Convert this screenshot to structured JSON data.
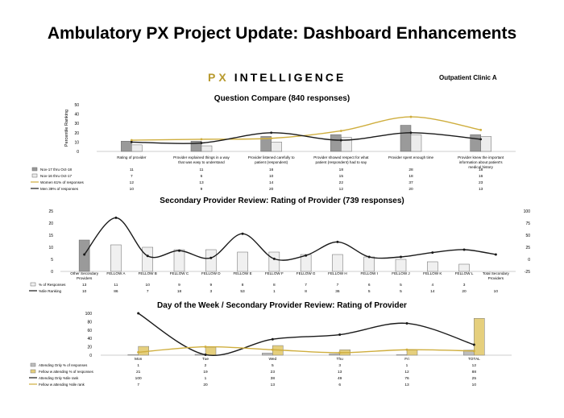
{
  "page_title": "Ambulatory PX Project Update: Dashboard Enhancements",
  "brand": {
    "px": "PX",
    "word": "INTELLIGENCE"
  },
  "clinic": "Outpatient Clinic A",
  "colors": {
    "dark_gray": "#9a9a9a",
    "light_gray": "#ececec",
    "gold": "#cfae3e",
    "gold_bar": "#e5cf7d",
    "line_black": "#1a1a1a"
  },
  "chart_data": [
    {
      "type": "bar",
      "title": "Question Compare (840 responses)",
      "ylabel": "Percentile Ranking",
      "ylim": [
        0,
        50
      ],
      "yticks": [
        0,
        10,
        20,
        30,
        40,
        50
      ],
      "categories": [
        "Rating of provider",
        "Provider explained things in a way that was easy to understand",
        "Provider listened carefully to patient (respondent)",
        "Provider showed respect for what patient (respondent) had to say",
        "Provider spent enough time",
        "Provider knew the important information about patient's medical history"
      ],
      "series": [
        {
          "name": "Nov-17 thru Oct-18",
          "kind": "bar",
          "color": "#9a9a9a",
          "values": [
            11,
            11,
            16,
            18,
            28,
            18
          ]
        },
        {
          "name": "Nov-16 thru Oct-17",
          "kind": "bar",
          "color": "#ececec",
          "values": [
            7,
            6,
            10,
            15,
            18,
            16
          ]
        },
        {
          "name": "Women 61% of responses",
          "kind": "line",
          "color": "#cfae3e",
          "values": [
            12,
            13,
            14,
            22,
            37,
            23
          ]
        },
        {
          "name": "Men 39% of responses",
          "kind": "line",
          "color": "#1a1a1a",
          "values": [
            10,
            9,
            20,
            12,
            20,
            13
          ]
        }
      ]
    },
    {
      "type": "bar",
      "title": "Secondary Provider Review:  Rating of Provider (739 responses)",
      "ylim": [
        0,
        25
      ],
      "yticks": [
        0,
        5,
        10,
        15,
        20,
        25
      ],
      "y2lim": [
        -25,
        100
      ],
      "y2ticks": [
        -25,
        0,
        25,
        50,
        75,
        100
      ],
      "categories": [
        "Other Secondary Providers",
        "FELLOW A",
        "FELLOW B",
        "FELLOW C",
        "FELLOW D",
        "FELLOW E",
        "FELLOW F",
        "FELLOW G",
        "FELLOW H",
        "FELLOW I",
        "FELLOW J",
        "FELLOW K",
        "FELLOW L",
        "Total Secondary Providers"
      ],
      "series": [
        {
          "name": "% of Responses",
          "kind": "bar",
          "axis": "left",
          "values": [
            13,
            11,
            10,
            9,
            9,
            8,
            8,
            7,
            7,
            6,
            5,
            4,
            3,
            null
          ]
        },
        {
          "name": "%tile Ranking",
          "kind": "line",
          "axis": "right",
          "color": "#1a1a1a",
          "values": [
            10,
            86,
            7,
            18,
            3,
            53,
            1,
            8,
            36,
            5,
            5,
            14,
            20,
            10
          ]
        }
      ]
    },
    {
      "type": "bar",
      "title": "Day of the Week / Secondary Provider Review:  Rating of Provider",
      "ylim": [
        0,
        100
      ],
      "yticks": [
        0,
        20,
        40,
        60,
        80,
        100
      ],
      "categories": [
        "Mon",
        "Tue",
        "Wed",
        "Thu",
        "Fri",
        "TOTAL"
      ],
      "series": [
        {
          "name": "Attending Only % of responses",
          "kind": "bar",
          "color": "#bdbdbd",
          "values": [
            1,
            2,
            5,
            3,
            1,
            12
          ]
        },
        {
          "name": "Fellow w attending % of responses",
          "kind": "bar",
          "color": "#e5cf7d",
          "values": [
            21,
            19,
            23,
            13,
            12,
            88
          ]
        },
        {
          "name": "Attending Only %tile rank",
          "kind": "line",
          "color": "#1a1a1a",
          "values": [
            100,
            1,
            38,
            49,
            76,
            25
          ]
        },
        {
          "name": "Fellow w attending %tile rank",
          "kind": "line",
          "color": "#cfae3e",
          "values": [
            7,
            20,
            13,
            6,
            13,
            10
          ]
        }
      ]
    }
  ]
}
